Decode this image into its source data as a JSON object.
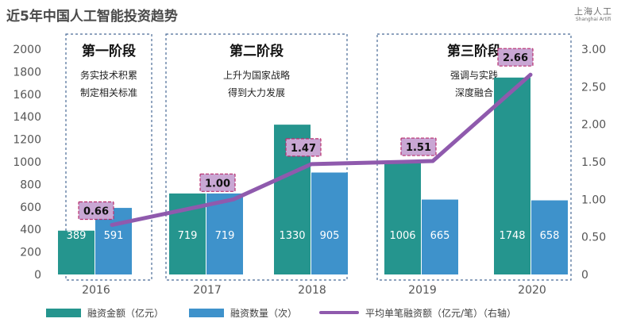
{
  "page": {
    "title": "近5年中国人工智能投资趋势",
    "brand": {
      "name_cn": "上海人工",
      "name_en": "Shanghai Artifi"
    }
  },
  "colors": {
    "amount": "#25958e",
    "count": "#3e92cb",
    "avg_line": "#8f5aad",
    "label_fill": "#c9a7d4",
    "label_border": "#b82e6e",
    "stage_border": "#4a6b96",
    "axis_text": "#555555"
  },
  "stages": [
    {
      "title": "第一阶段",
      "lines": [
        "务实技术积累",
        "制定相关标准"
      ]
    },
    {
      "title": "第二阶段",
      "lines": [
        "上升为国家战略",
        "得到大力发展"
      ]
    },
    {
      "title": "第三阶段",
      "lines": [
        "强调与实践",
        "深度融合"
      ]
    }
  ],
  "chart_data": {
    "type": "bar",
    "title": "近5年中国人工智能投资趋势",
    "y_left": {
      "range": [
        0,
        2000
      ],
      "ticks": [
        "0",
        "200",
        "400",
        "600",
        "800",
        "1000",
        "1200",
        "1400",
        "1600",
        "1800",
        "2000"
      ]
    },
    "y_right": {
      "range": [
        0,
        3
      ],
      "ticks": [
        "0",
        "0.50",
        "1.00",
        "1.50",
        "2.00",
        "2.50",
        "3.00"
      ]
    },
    "series": [
      {
        "name": "融资金额（亿元）",
        "axis": "left",
        "type": "bar",
        "points": [
          {
            "year": 2016,
            "value": 389
          },
          {
            "year": 2017,
            "value": 719
          },
          {
            "year": 2018,
            "value": 1330
          },
          {
            "year": 2019,
            "value": 1006
          },
          {
            "year": 2020,
            "value": 1748
          }
        ]
      },
      {
        "name": "融资数量（次）",
        "axis": "left",
        "type": "bar",
        "points": [
          {
            "year": 2016,
            "value": 591
          },
          {
            "year": 2017,
            "value": 719
          },
          {
            "year": 2018,
            "value": 905
          },
          {
            "year": 2019,
            "value": 665
          },
          {
            "year": 2020,
            "value": 658
          }
        ]
      },
      {
        "name": "平均单笔融资额（亿元/笔）（右轴）",
        "axis": "right",
        "type": "line",
        "points": [
          {
            "year": 2016,
            "value": 0.66,
            "label": "0.66"
          },
          {
            "year": 2017,
            "value": 1.0,
            "label": "1.00"
          },
          {
            "year": 2018,
            "value": 1.47,
            "label": "1.47"
          },
          {
            "year": 2019,
            "value": 1.51,
            "label": "1.51"
          },
          {
            "year": 2020,
            "value": 2.66,
            "label": "2.66"
          }
        ]
      }
    ],
    "legend": [
      {
        "label": "融资金额（亿元）",
        "kind": "bar",
        "series": 0
      },
      {
        "label": "融资数量（次）",
        "kind": "bar",
        "series": 1
      },
      {
        "label": "平均单笔融资额（亿元/笔）（右轴）",
        "kind": "line",
        "series": 2
      }
    ]
  }
}
